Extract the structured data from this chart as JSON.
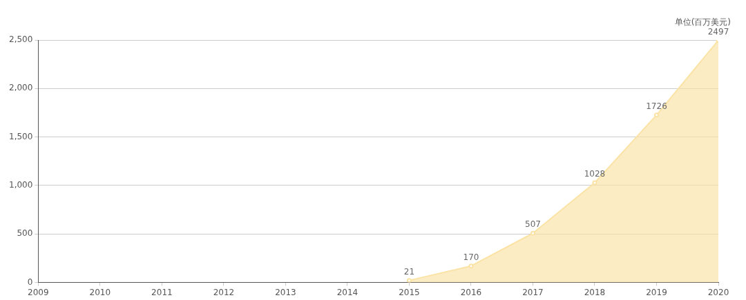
{
  "chart_data": {
    "type": "area",
    "x": [
      2015,
      2016,
      2017,
      2018,
      2019,
      2020
    ],
    "series": [
      {
        "color": "#fbe3a6",
        "values": [
          21,
          170,
          507,
          1028,
          1726,
          2497
        ]
      }
    ],
    "xlim": [
      2009,
      2020
    ],
    "xticks": [
      2009,
      2010,
      2011,
      2012,
      2013,
      2014,
      2015,
      2016,
      2017,
      2018,
      2019,
      2020
    ],
    "ylim": [
      0,
      2500
    ],
    "yticks": [
      {
        "value": 0,
        "label": "0"
      },
      {
        "value": 500,
        "label": "500"
      },
      {
        "value": 1000,
        "label": "1,000"
      },
      {
        "value": 1500,
        "label": "1,500"
      },
      {
        "value": 2000,
        "label": "2,000"
      },
      {
        "value": 2500,
        "label": "2,500"
      }
    ],
    "grid": "y",
    "legend": false,
    "marker": "circle",
    "data_labels": true,
    "annotations": [
      "单位(百万美元)"
    ]
  }
}
